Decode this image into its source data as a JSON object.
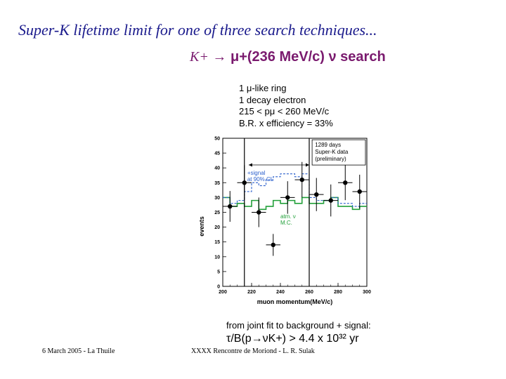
{
  "slide": {
    "title": "Super-K lifetime limit for one of three search techniques...",
    "search_kaon": "K+",
    "search_rest": "→ μ+(236 MeV/c) ν  search",
    "cuts": [
      "1 μ-like ring",
      "1 decay electron",
      "215 < pμ < 260 MeV/c",
      "B.R. x efficiency = 33%"
    ],
    "result_line1": "from joint fit to background + signal:",
    "result_line2": "τ/B(p→νK+) > 4.4 x 10³² yr",
    "footer_left": "6 March 2005 - La Thuile",
    "footer_right": "XXXX Rencontre de Moriond - L. R. Sulak"
  },
  "chart_data": {
    "type": "scatter",
    "xlabel": "muon momentum(MeV/c)",
    "ylabel": "events",
    "xlim": [
      200,
      300
    ],
    "ylim": [
      0,
      50
    ],
    "xticks": [
      200,
      220,
      240,
      260,
      280,
      300
    ],
    "yticks": [
      0,
      5,
      10,
      15,
      20,
      25,
      30,
      35,
      40,
      45,
      50
    ],
    "grid": false,
    "annotations": {
      "box": [
        "1289 days",
        "Super-K data",
        "(preliminary)"
      ],
      "signal": [
        "+signal",
        "at 90% CL"
      ],
      "mc": [
        "atm. ν",
        "M.C."
      ]
    },
    "cut_lines_x": [
      215,
      260
    ],
    "data_points": {
      "x": [
        205,
        215,
        225,
        235,
        245,
        255,
        265,
        275,
        285,
        295
      ],
      "y": [
        27,
        35,
        25,
        14,
        30,
        36,
        31,
        29,
        35,
        32
      ],
      "err": [
        5.2,
        5.9,
        5.0,
        3.7,
        5.5,
        6.0,
        5.6,
        5.4,
        5.9,
        5.7
      ]
    },
    "series": [
      {
        "name": "atm. ν M.C.",
        "color": "#22a03a",
        "style": "solid",
        "edges": [
          200,
          205,
          210,
          215,
          220,
          225,
          230,
          235,
          240,
          245,
          250,
          255,
          260,
          265,
          270,
          275,
          280,
          285,
          290,
          295,
          300
        ],
        "values": [
          30,
          27,
          28,
          27,
          29,
          26,
          27,
          29,
          28,
          29,
          28,
          30,
          28,
          28,
          29,
          30,
          27,
          27,
          26,
          27
        ]
      },
      {
        "name": "+signal at 90% CL",
        "color": "#2a5fcc",
        "style": "dashed",
        "edges": [
          200,
          205,
          210,
          215,
          220,
          225,
          230,
          235,
          240,
          245,
          250,
          255,
          260,
          265,
          270,
          275,
          280,
          285,
          290,
          295,
          300
        ],
        "values": [
          30,
          28,
          29,
          32,
          35,
          34,
          36,
          37,
          38,
          38,
          37,
          38,
          30,
          29,
          29,
          30,
          28,
          28,
          27,
          28
        ]
      }
    ]
  }
}
